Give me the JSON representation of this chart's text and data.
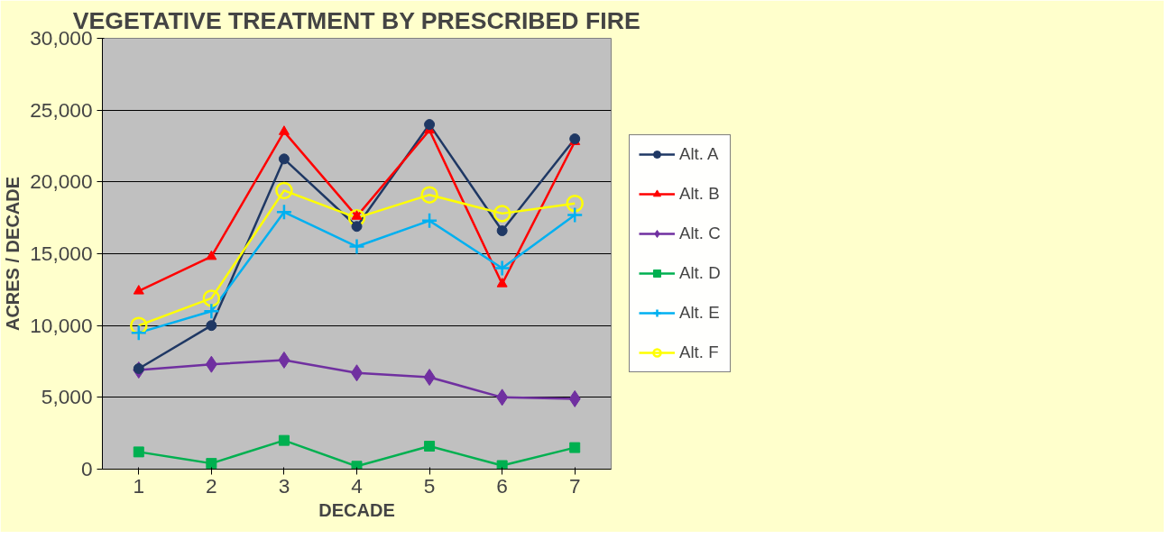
{
  "chart_data": {
    "type": "line",
    "title": "VEGETATIVE TREATMENT BY PRESCRIBED FIRE",
    "xlabel": "DECADE",
    "ylabel": "ACRES / DECADE",
    "categories": [
      "1",
      "2",
      "3",
      "4",
      "5",
      "6",
      "7"
    ],
    "ylim": [
      0,
      30000
    ],
    "yticks": [
      {
        "value": 0,
        "label": "0"
      },
      {
        "value": 5000,
        "label": "5,000"
      },
      {
        "value": 10000,
        "label": "10,000"
      },
      {
        "value": 15000,
        "label": "15,000"
      },
      {
        "value": 20000,
        "label": "20,000"
      },
      {
        "value": 25000,
        "label": "25,000"
      },
      {
        "value": 30000,
        "label": "30,000"
      }
    ],
    "grid": "y",
    "legend": "right",
    "series": [
      {
        "name": "Alt. A",
        "color": "#1f3864",
        "marker": "circle",
        "values": [
          7000,
          10000,
          21600,
          16900,
          24000,
          16600,
          23000
        ]
      },
      {
        "name": "Alt. B",
        "color": "#ff0000",
        "marker": "triangle",
        "values": [
          12400,
          14800,
          23500,
          17600,
          23600,
          12900,
          22800
        ]
      },
      {
        "name": "Alt. C",
        "color": "#7030a0",
        "marker": "diamond",
        "values": [
          6900,
          7300,
          7600,
          6700,
          6400,
          5000,
          4900
        ]
      },
      {
        "name": "Alt. D",
        "color": "#00b050",
        "marker": "square",
        "values": [
          1200,
          400,
          2000,
          200,
          1600,
          250,
          1500
        ]
      },
      {
        "name": "Alt. E",
        "color": "#00b0f0",
        "marker": "cross",
        "values": [
          9500,
          11000,
          17900,
          15500,
          17300,
          14000,
          17700
        ]
      },
      {
        "name": "Alt. F",
        "color": "#ffff00",
        "marker": "open_circle",
        "values": [
          10000,
          11900,
          19400,
          17500,
          19100,
          17800,
          18500
        ]
      }
    ]
  }
}
